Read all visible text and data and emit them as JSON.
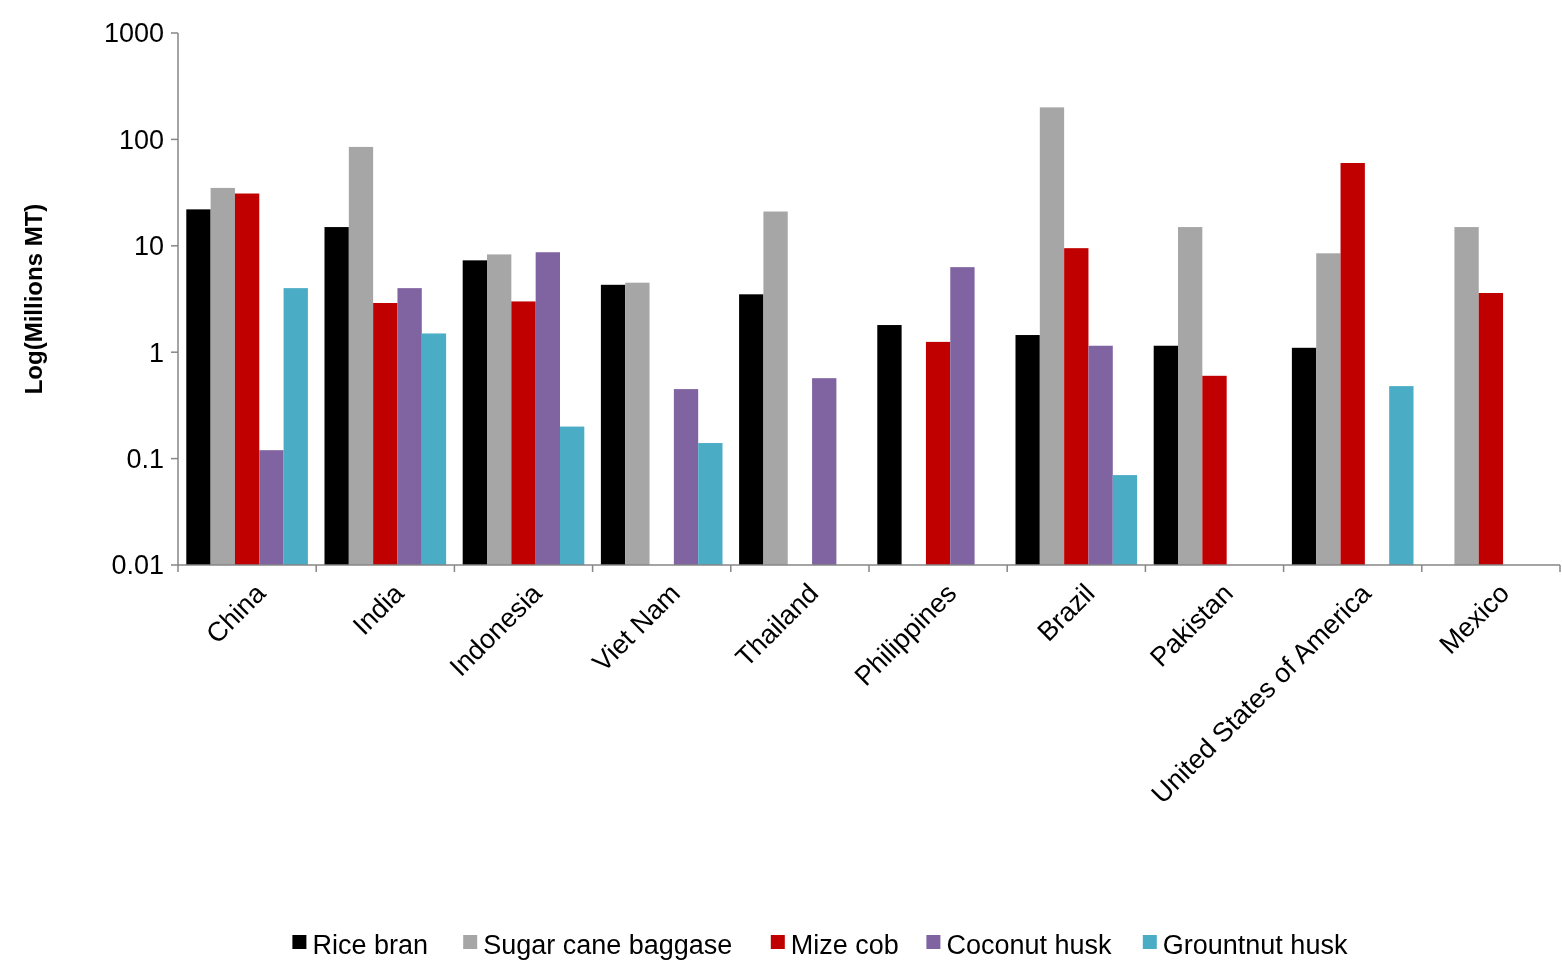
{
  "chart_data": {
    "type": "bar",
    "ylabel": "Log(Millions MT)",
    "log": true,
    "ylim": [
      0.01,
      1000
    ],
    "yticks": [
      0.01,
      0.1,
      1,
      10,
      100,
      1000
    ],
    "grid": false,
    "legend": "bottom",
    "categories": [
      "China",
      "India",
      "Indonesia",
      "Viet Nam",
      "Thailand",
      "Philippines",
      "Brazil",
      "Pakistan",
      "United States of America",
      "Mexico"
    ],
    "series": [
      {
        "name": "Rice bran",
        "color": "#000000",
        "values": [
          22,
          15,
          7.3,
          4.3,
          3.5,
          1.8,
          1.45,
          1.15,
          1.1,
          null
        ]
      },
      {
        "name": "Sugar cane baggase",
        "color": "#a6a6a6",
        "values": [
          35,
          85,
          8.3,
          4.5,
          21,
          null,
          200,
          15,
          8.5,
          15
        ]
      },
      {
        "name": "Mize cob",
        "color": "#c00000",
        "values": [
          31,
          2.9,
          3,
          null,
          null,
          1.25,
          9.5,
          0.6,
          60,
          3.6
        ]
      },
      {
        "name": "Coconut husk",
        "color": "#8064a2",
        "values": [
          0.12,
          4,
          8.7,
          0.45,
          0.57,
          6.3,
          1.15,
          null,
          null,
          null
        ]
      },
      {
        "name": "Grountnut husk",
        "color": "#4bacc6",
        "values": [
          4,
          1.5,
          0.2,
          0.14,
          null,
          null,
          0.07,
          null,
          0.48,
          null
        ]
      }
    ]
  }
}
